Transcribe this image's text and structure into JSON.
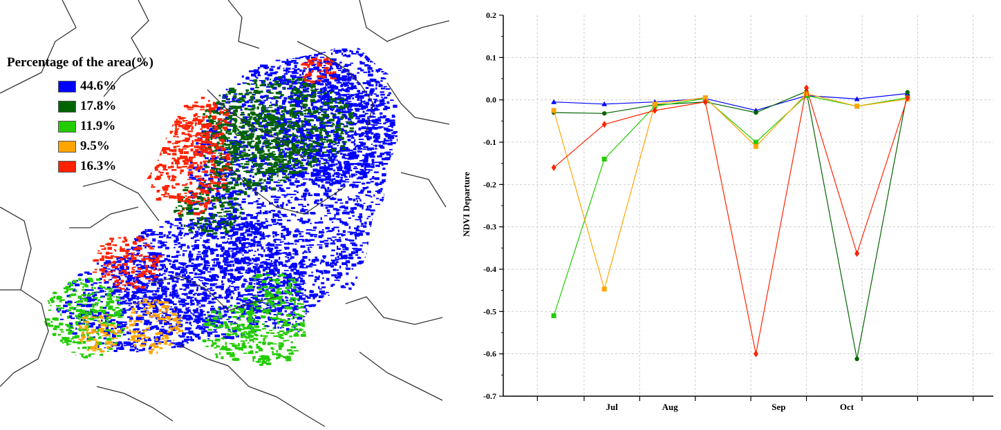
{
  "map": {
    "legend_title": "Percentage of the area(%)",
    "legend": [
      {
        "label": "44.6%",
        "color": "#0000ff"
      },
      {
        "label": "17.8%",
        "color": "#006400"
      },
      {
        "label": "11.9%",
        "color": "#22cc00"
      },
      {
        "label": "9.5%",
        "color": "#ffa500"
      },
      {
        "label": "16.3%",
        "color": "#ff2200"
      }
    ]
  },
  "chart_data": {
    "type": "line",
    "title": "",
    "xlabel": "",
    "ylabel": "NDVI Departure",
    "ylim": [
      -0.7,
      0.2
    ],
    "yticks": [
      "0.2",
      "0.1",
      "0.0",
      "-0.1",
      "-0.2",
      "-0.3",
      "-0.4",
      "-0.5",
      "-0.6",
      "-0.7"
    ],
    "x_month_labels": [
      "Jul",
      "Aug",
      "Sep",
      "Oct"
    ],
    "grid": true,
    "legend": "none",
    "x": [
      1,
      2,
      3,
      4,
      5,
      6,
      7,
      8
    ],
    "series": [
      {
        "color": "#0000ff",
        "marker": "triangle",
        "values": [
          -0.005,
          -0.01,
          -0.005,
          0.003,
          -0.025,
          0.01,
          0.002,
          0.015
        ]
      },
      {
        "color": "#006400",
        "marker": "circle",
        "values": [
          -0.03,
          -0.032,
          -0.012,
          -0.005,
          -0.03,
          0.02,
          -0.612,
          0.018
        ]
      },
      {
        "color": "#22cc00",
        "marker": "square",
        "values": [
          -0.51,
          -0.14,
          -0.015,
          0.003,
          -0.1,
          0.01,
          -0.015,
          0.005
        ]
      },
      {
        "color": "#ffa500",
        "marker": "square",
        "values": [
          -0.025,
          -0.447,
          -0.01,
          0.005,
          -0.11,
          0.015,
          -0.015,
          0.002
        ]
      },
      {
        "color": "#ff2200",
        "marker": "diamond",
        "values": [
          -0.16,
          -0.058,
          -0.025,
          -0.005,
          -0.6,
          0.028,
          -0.363,
          0.005
        ]
      }
    ]
  }
}
